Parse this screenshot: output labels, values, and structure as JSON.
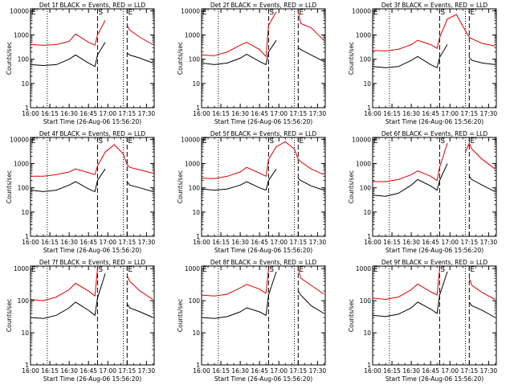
{
  "figure": {
    "ylabel": "Counts/sec",
    "xlabel": "Start Time (26-Aug-06 15:56:20)",
    "x_ticks": [
      "16:00",
      "16:15",
      "16:30",
      "16:45",
      "17:00",
      "17:15",
      "17:30"
    ],
    "y_ticks": [
      "1",
      "10",
      "100",
      "1000",
      "10000"
    ],
    "markers": [
      "E",
      "S",
      "E"
    ],
    "colors": {
      "events": "#000000",
      "lld": "#e00000",
      "axes": "#000000",
      "background": "#ffffff"
    }
  },
  "chart_data": [
    {
      "type": "line",
      "title": "Det 1f BLACK = Events, RED = LLD",
      "ylim": [
        1,
        12000
      ],
      "yscale": "log",
      "xlim": [
        "16:00",
        "17:36"
      ],
      "dotted_x": [
        "16:13",
        "17:12"
      ],
      "dashed_x": [
        "16:52",
        "17:15"
      ],
      "series": [
        {
          "name": "Events",
          "x": [
            "16:00",
            "16:10",
            "16:20",
            "16:30",
            "16:35",
            "16:45",
            "16:50",
            "16:52",
            "16:58",
            "17:05",
            "17:12",
            "17:15",
            "17:17",
            "17:25",
            "17:35"
          ],
          "values": [
            60,
            55,
            60,
            100,
            150,
            70,
            50,
            150,
            500,
            null,
            null,
            180,
            150,
            110,
            70
          ]
        },
        {
          "name": "LLD",
          "x": [
            "16:00",
            "16:10",
            "16:20",
            "16:30",
            "16:35",
            "16:45",
            "16:50",
            "16:52",
            "16:58",
            "17:05",
            "17:12",
            "17:15",
            "17:17",
            "17:25",
            "17:35"
          ],
          "values": [
            400,
            380,
            400,
            550,
            1100,
            500,
            380,
            1000,
            4000,
            null,
            null,
            2500,
            1600,
            800,
            400
          ]
        }
      ]
    },
    {
      "type": "line",
      "title": "Det 2f BLACK = Events, RED = LLD",
      "ylim": [
        1,
        12000
      ],
      "yscale": "log",
      "xlim": [
        "16:00",
        "17:36"
      ],
      "dotted_x": [
        "16:13",
        "17:12"
      ],
      "dashed_x": [
        "16:52",
        "17:15"
      ],
      "series": [
        {
          "name": "Events",
          "x": [
            "16:00",
            "16:10",
            "16:20",
            "16:30",
            "16:35",
            "16:45",
            "16:50",
            "16:52",
            "16:58",
            "17:05",
            "17:12",
            "17:15",
            "17:17",
            "17:25",
            "17:35"
          ],
          "values": [
            70,
            60,
            70,
            110,
            160,
            80,
            60,
            200,
            600,
            null,
            null,
            300,
            250,
            150,
            80
          ]
        },
        {
          "name": "LLD",
          "x": [
            "16:00",
            "16:10",
            "16:20",
            "16:30",
            "16:35",
            "16:45",
            "16:50",
            "16:52",
            "16:58",
            "17:05",
            "17:12",
            "17:15",
            "17:17",
            "17:25",
            "17:35"
          ],
          "values": [
            150,
            140,
            200,
            380,
            500,
            250,
            130,
            2500,
            9000,
            null,
            null,
            9000,
            3000,
            2000,
            600
          ]
        }
      ]
    },
    {
      "type": "line",
      "title": "Det 3f BLACK = Events, RED = LLD",
      "ylim": [
        1,
        12000
      ],
      "yscale": "log",
      "xlim": [
        "16:00",
        "17:36"
      ],
      "dotted_x": [
        "16:13",
        "17:12"
      ],
      "dashed_x": [
        "16:52",
        "17:15"
      ],
      "series": [
        {
          "name": "Events",
          "x": [
            "16:00",
            "16:10",
            "16:20",
            "16:30",
            "16:35",
            "16:45",
            "16:50",
            "16:52",
            "16:58",
            "17:05",
            "17:12",
            "17:15",
            "17:17",
            "17:25",
            "17:35"
          ],
          "values": [
            50,
            45,
            50,
            90,
            130,
            60,
            45,
            120,
            400,
            null,
            null,
            120,
            90,
            70,
            60
          ]
        },
        {
          "name": "LLD",
          "x": [
            "16:00",
            "16:10",
            "16:20",
            "16:30",
            "16:35",
            "16:45",
            "16:50",
            "16:52",
            "16:58",
            "17:05",
            "17:12",
            "17:15",
            "17:17",
            "17:25",
            "17:35"
          ],
          "values": [
            230,
            220,
            260,
            400,
            600,
            400,
            280,
            800,
            4500,
            7000,
            1500,
            800,
            700,
            450,
            350
          ]
        }
      ]
    },
    {
      "type": "line",
      "title": "Det 4f BLACK = Events, RED = LLD",
      "ylim": [
        1,
        12000
      ],
      "yscale": "log",
      "xlim": [
        "16:00",
        "17:36"
      ],
      "dotted_x": [
        "16:13",
        "17:12"
      ],
      "dashed_x": [
        "16:52",
        "17:15"
      ],
      "series": [
        {
          "name": "Events",
          "x": [
            "16:00",
            "16:10",
            "16:20",
            "16:30",
            "16:35",
            "16:45",
            "16:50",
            "16:52",
            "16:58",
            "17:05",
            "17:12",
            "17:15",
            "17:17",
            "17:25",
            "17:35"
          ],
          "values": [
            80,
            70,
            80,
            130,
            180,
            90,
            70,
            200,
            600,
            null,
            null,
            180,
            130,
            100,
            70
          ]
        },
        {
          "name": "LLD",
          "x": [
            "16:00",
            "16:10",
            "16:20",
            "16:30",
            "16:35",
            "16:45",
            "16:50",
            "16:52",
            "16:58",
            "17:05",
            "17:12",
            "17:15",
            "17:17",
            "17:25",
            "17:35"
          ],
          "values": [
            300,
            300,
            350,
            450,
            600,
            420,
            350,
            800,
            3000,
            6000,
            2500,
            900,
            700,
            550,
            400
          ]
        }
      ]
    },
    {
      "type": "line",
      "title": "Det 5f BLACK = Events, RED = LLD",
      "ylim": [
        1,
        12000
      ],
      "yscale": "log",
      "xlim": [
        "16:00",
        "17:36"
      ],
      "dotted_x": [
        "16:13",
        "17:12"
      ],
      "dashed_x": [
        "16:52",
        "17:15"
      ],
      "series": [
        {
          "name": "Events",
          "x": [
            "16:00",
            "16:10",
            "16:20",
            "16:30",
            "16:35",
            "16:45",
            "16:50",
            "16:52",
            "16:58",
            "17:05",
            "17:12",
            "17:15",
            "17:17",
            "17:25",
            "17:35"
          ],
          "values": [
            90,
            80,
            90,
            130,
            180,
            100,
            80,
            200,
            600,
            null,
            null,
            250,
            200,
            120,
            80
          ]
        },
        {
          "name": "LLD",
          "x": [
            "16:00",
            "16:10",
            "16:20",
            "16:30",
            "16:35",
            "16:45",
            "16:50",
            "16:52",
            "16:58",
            "17:05",
            "17:12",
            "17:15",
            "17:17",
            "17:25",
            "17:35"
          ],
          "values": [
            250,
            240,
            300,
            450,
            700,
            400,
            300,
            1500,
            5000,
            8000,
            4000,
            1500,
            1200,
            600,
            350
          ]
        }
      ]
    },
    {
      "type": "line",
      "title": "Det 6f BLACK = Events, RED = LLD",
      "ylim": [
        1,
        12000
      ],
      "yscale": "log",
      "xlim": [
        "16:00",
        "17:36"
      ],
      "dotted_x": [
        "16:13",
        "17:12"
      ],
      "dashed_x": [
        "16:52",
        "17:15"
      ],
      "series": [
        {
          "name": "Events",
          "x": [
            "16:00",
            "16:10",
            "16:20",
            "16:30",
            "16:35",
            "16:45",
            "16:50",
            "16:52",
            "16:58",
            "17:05",
            "17:12",
            "17:15",
            "17:17",
            "17:25",
            "17:35"
          ],
          "values": [
            50,
            45,
            60,
            130,
            220,
            120,
            80,
            200,
            1000,
            null,
            null,
            300,
            220,
            130,
            70
          ]
        },
        {
          "name": "LLD",
          "x": [
            "16:00",
            "16:10",
            "16:20",
            "16:30",
            "16:35",
            "16:45",
            "16:50",
            "16:52",
            "16:58",
            "17:05",
            "17:12",
            "17:15",
            "17:17",
            "17:25",
            "17:35"
          ],
          "values": [
            180,
            180,
            220,
            350,
            500,
            300,
            200,
            700,
            7000,
            null,
            3000,
            7000,
            4000,
            1500,
            600
          ]
        }
      ]
    },
    {
      "type": "line",
      "title": "Det 7f BLACK = Events, RED = LLD",
      "ylim": [
        1,
        1200
      ],
      "yscale": "log",
      "xlim": [
        "16:00",
        "17:36"
      ],
      "dotted_x": [
        "16:13",
        "17:12"
      ],
      "dashed_x": [
        "16:52",
        "17:15"
      ],
      "series": [
        {
          "name": "Events",
          "x": [
            "16:00",
            "16:10",
            "16:20",
            "16:30",
            "16:35",
            "16:45",
            "16:50",
            "16:52",
            "16:58",
            "17:05",
            "17:12",
            "17:15",
            "17:17",
            "17:25",
            "17:35"
          ],
          "values": [
            30,
            28,
            35,
            60,
            90,
            50,
            35,
            120,
            700,
            null,
            null,
            80,
            60,
            45,
            30
          ]
        },
        {
          "name": "LLD",
          "x": [
            "16:00",
            "16:10",
            "16:20",
            "16:30",
            "16:35",
            "16:45",
            "16:50",
            "16:52",
            "16:58",
            "17:05",
            "17:12",
            "17:15",
            "17:17",
            "17:25",
            "17:35"
          ],
          "values": [
            110,
            100,
            130,
            220,
            350,
            200,
            140,
            1000,
            null,
            null,
            null,
            600,
            400,
            200,
            110
          ]
        }
      ]
    },
    {
      "type": "line",
      "title": "Det 8f BLACK = Events, RED = LLD",
      "ylim": [
        1,
        1200
      ],
      "yscale": "log",
      "xlim": [
        "16:00",
        "17:36"
      ],
      "dotted_x": [
        "16:13",
        "17:12"
      ],
      "dashed_x": [
        "16:52",
        "17:15"
      ],
      "series": [
        {
          "name": "Events",
          "x": [
            "16:00",
            "16:10",
            "16:20",
            "16:30",
            "16:35",
            "16:45",
            "16:50",
            "16:52",
            "16:58",
            "17:05",
            "17:12",
            "17:15",
            "17:17",
            "17:25",
            "17:35"
          ],
          "values": [
            30,
            28,
            32,
            45,
            60,
            45,
            35,
            150,
            800,
            null,
            null,
            200,
            150,
            70,
            40
          ]
        },
        {
          "name": "LLD",
          "x": [
            "16:00",
            "16:10",
            "16:20",
            "16:30",
            "16:35",
            "16:45",
            "16:50",
            "16:52",
            "16:58",
            "17:05",
            "17:12",
            "17:15",
            "17:17",
            "17:25",
            "17:35"
          ],
          "values": [
            150,
            140,
            160,
            250,
            320,
            230,
            170,
            1000,
            null,
            null,
            null,
            1000,
            500,
            300,
            160
          ]
        }
      ]
    },
    {
      "type": "line",
      "title": "Det 9f BLACK = Events, RED = LLD",
      "ylim": [
        1,
        1200
      ],
      "yscale": "log",
      "xlim": [
        "16:00",
        "17:36"
      ],
      "dotted_x": [
        "16:13",
        "17:12"
      ],
      "dashed_x": [
        "16:52",
        "17:15"
      ],
      "series": [
        {
          "name": "Events",
          "x": [
            "16:00",
            "16:10",
            "16:20",
            "16:30",
            "16:35",
            "16:45",
            "16:50",
            "16:52",
            "16:58",
            "17:05",
            "17:12",
            "17:15",
            "17:17",
            "17:25",
            "17:35"
          ],
          "values": [
            35,
            32,
            38,
            60,
            90,
            55,
            40,
            150,
            800,
            null,
            null,
            90,
            70,
            50,
            30
          ]
        },
        {
          "name": "LLD",
          "x": [
            "16:00",
            "16:10",
            "16:20",
            "16:30",
            "16:35",
            "16:45",
            "16:50",
            "16:52",
            "16:58",
            "17:05",
            "17:12",
            "17:15",
            "17:17",
            "17:25",
            "17:35"
          ],
          "values": [
            120,
            110,
            130,
            220,
            330,
            190,
            150,
            1000,
            null,
            null,
            null,
            500,
            300,
            180,
            110
          ]
        }
      ]
    }
  ]
}
